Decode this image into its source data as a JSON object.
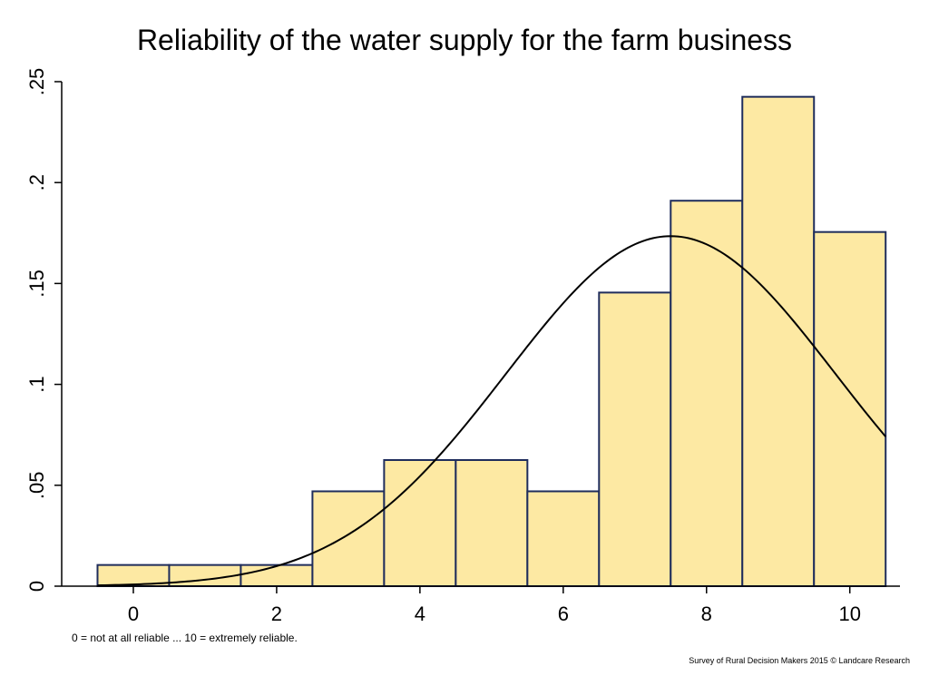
{
  "chart_data": {
    "type": "bar",
    "title": "Reliability of the water supply for the farm business",
    "xlabel": "",
    "ylabel": "",
    "xlim": [
      -1,
      10.7
    ],
    "ylim": [
      0,
      0.25
    ],
    "x_ticks": [
      0,
      2,
      4,
      6,
      8,
      10
    ],
    "x_tick_labels": [
      "0",
      "2",
      "4",
      "6",
      "8",
      "10"
    ],
    "y_ticks": [
      0,
      0.05,
      0.1,
      0.15,
      0.2,
      0.25
    ],
    "y_tick_labels": [
      "0",
      ".05",
      ".1",
      ".15",
      ".2",
      ".25"
    ],
    "grid": false,
    "bin_width": 1,
    "categories": [
      0,
      1,
      2,
      3,
      4,
      5,
      6,
      7,
      8,
      9,
      10
    ],
    "values": [
      0.0105,
      0.0105,
      0.0105,
      0.047,
      0.0625,
      0.0625,
      0.047,
      0.1455,
      0.191,
      0.2425,
      0.1755
    ],
    "normal_curve": {
      "mean": 7.5,
      "sd": 2.3
    },
    "bar_fill": "#fde9a3",
    "bar_stroke": "#1f2d5c",
    "curve_color": "#000000"
  },
  "note": "0 = not at all reliable ... 10 = extremely reliable.",
  "source": "Survey of Rural Decision Makers 2015 © Landcare Research"
}
